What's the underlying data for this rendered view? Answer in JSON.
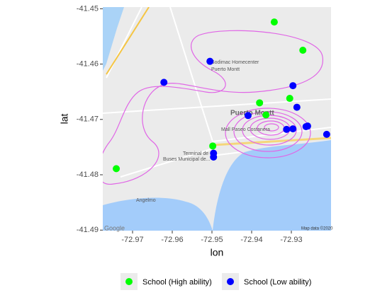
{
  "chart_data": {
    "type": "scatter",
    "x_label": "lon",
    "y_label": "lat",
    "xlim": [
      -72.9775,
      -72.92
    ],
    "ylim": [
      -41.4901,
      -41.4497
    ],
    "xticks": [
      -72.97,
      -72.96,
      -72.95,
      -72.94,
      -72.93
    ],
    "yticks": [
      -41.45,
      -41.46,
      -41.47,
      -41.48,
      -41.49
    ],
    "legend_position": "bottom",
    "annotations": [
      "Sodimac Homecenter",
      "Puerto Montt",
      "Puerto Montt",
      "Mall Paseo Costanera",
      "Terminal de",
      "Buses Municipal de...",
      "Angelmo",
      "Google",
      "Map data ©2020"
    ],
    "series": [
      {
        "name": "School (High ability)",
        "color": "#00ff00",
        "x": [
          -72.9343,
          -72.9271,
          -72.938,
          -72.9304,
          -72.9364,
          -72.9498,
          -72.9741
        ],
        "y": [
          -41.4524,
          -41.4575,
          -41.467,
          -41.4662,
          -41.4692,
          -41.4748,
          -41.4789
        ]
      },
      {
        "name": "School (Low ability)",
        "color": "#0000ff",
        "x": [
          -72.9505,
          -72.9621,
          -72.9296,
          -72.9286,
          -72.9409,
          -72.9312,
          -72.9296,
          -72.9263,
          -72.9259,
          -72.9211,
          -72.9496,
          -72.9496
        ],
        "y": [
          -41.4595,
          -41.4633,
          -41.4639,
          -41.4678,
          -41.4693,
          -41.4718,
          -41.4717,
          -41.4713,
          -41.4712,
          -41.4727,
          -41.4761,
          -41.4768
        ]
      }
    ]
  }
}
